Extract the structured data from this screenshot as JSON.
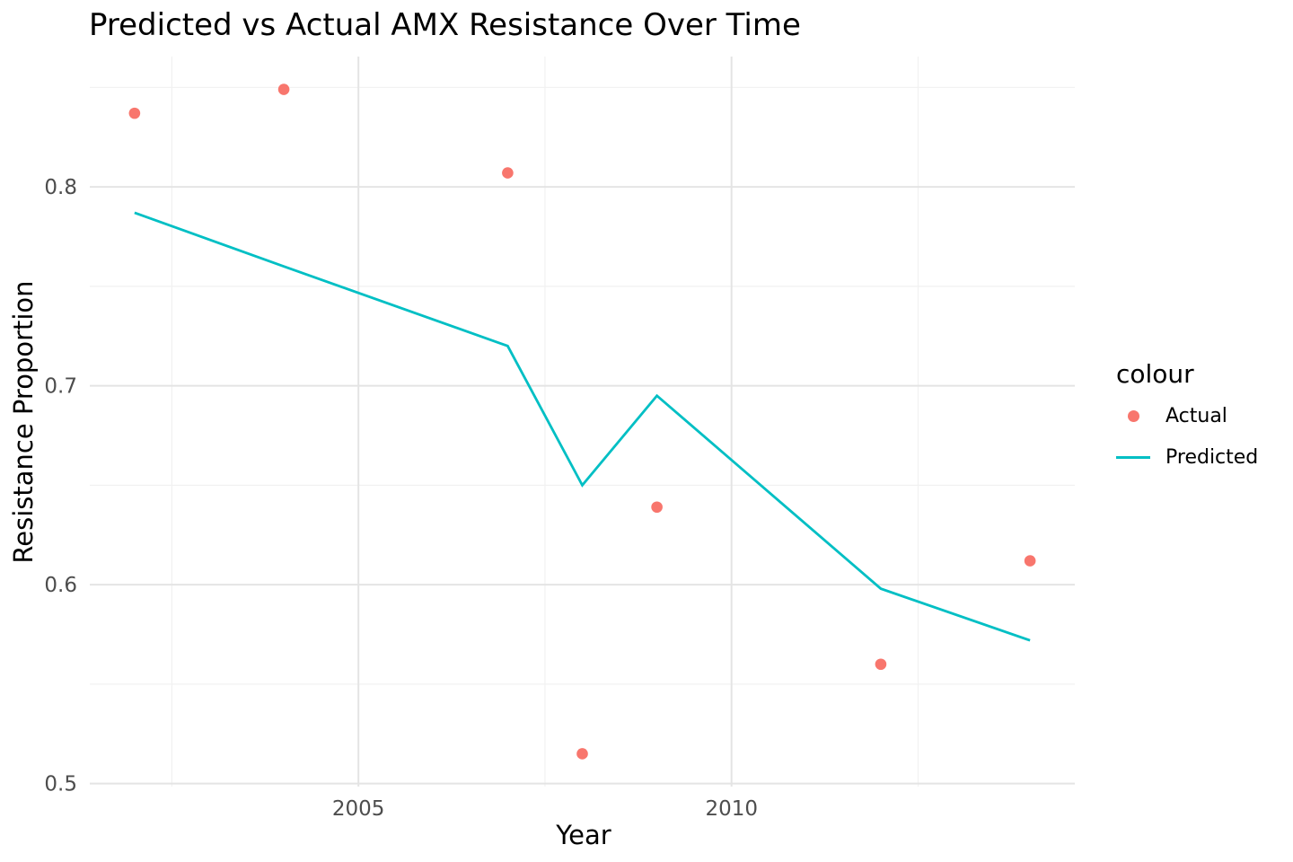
{
  "chart_data": {
    "type": "line",
    "title": "Predicted vs Actual AMX Resistance Over Time",
    "xlabel": "Year",
    "ylabel": "Resistance Proportion",
    "x": [
      2002,
      2004,
      2007,
      2008,
      2009,
      2012,
      2014
    ],
    "series": [
      {
        "name": "Actual",
        "style": "scatter",
        "color": "#F8766D",
        "values": [
          0.837,
          0.849,
          0.807,
          0.515,
          0.639,
          0.56,
          0.612
        ]
      },
      {
        "name": "Predicted",
        "style": "line",
        "color": "#00BFC4",
        "values": [
          0.787,
          0.76,
          0.72,
          0.65,
          0.695,
          0.598,
          0.572
        ]
      }
    ],
    "axes": {
      "x": {
        "range": [
          2001.4,
          2014.6
        ],
        "major_ticks": [
          2005,
          2010
        ],
        "tick_labels": [
          "2005",
          "2010"
        ],
        "minor_ticks": [
          2002.5,
          2007.5,
          2012.5
        ]
      },
      "y": {
        "range": [
          0.4985,
          0.8655
        ],
        "major_ticks": [
          0.5,
          0.6,
          0.7,
          0.8
        ],
        "tick_labels": [
          "0.5",
          "0.6",
          "0.7",
          "0.8"
        ],
        "minor_ticks": [
          0.55,
          0.65,
          0.75,
          0.85
        ]
      }
    },
    "grid": true,
    "legend": {
      "title": "colour",
      "position": "right",
      "entries": [
        {
          "label": "Actual",
          "swatch": "point",
          "color": "#F8766D"
        },
        {
          "label": "Predicted",
          "swatch": "line",
          "color": "#00BFC4"
        }
      ]
    },
    "colors": {
      "background": "#FFFFFF",
      "grid_major": "#E4E4E4",
      "grid_minor": "#F1F1F1",
      "tick_text": "#4D4D4D",
      "text": "#000000",
      "actual": "#F8766D",
      "predicted": "#00BFC4"
    }
  }
}
